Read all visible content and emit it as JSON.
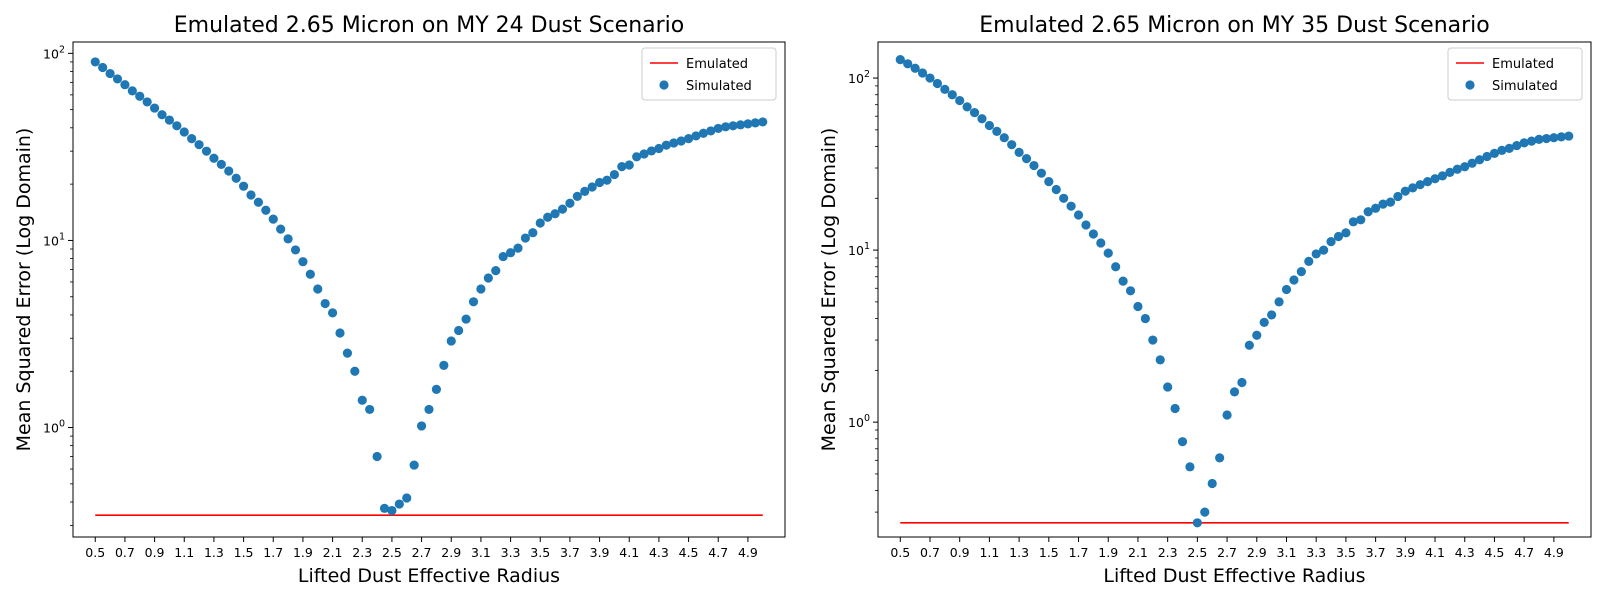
{
  "chart_data": [
    {
      "type": "scatter",
      "title": "Emulated 2.65 Micron on MY 24 Dust Scenario",
      "xlabel": "Lifted Dust Effective Radius",
      "ylabel": "Mean Squared Error (Log Domain)",
      "yscale": "log",
      "xlim": [
        0.35,
        5.15
      ],
      "ylim": [
        0.26,
        115
      ],
      "x_ticks": [
        "0.5",
        "0.7",
        "0.9",
        "1.1",
        "1.3",
        "1.5",
        "1.7",
        "1.9",
        "2.1",
        "2.3",
        "2.5",
        "2.7",
        "2.9",
        "3.1",
        "3.3",
        "3.5",
        "3.7",
        "3.9",
        "4.1",
        "4.3",
        "4.5",
        "4.7",
        "4.9"
      ],
      "y_ticks": [
        {
          "value": 1,
          "base": "10",
          "exp": "0"
        },
        {
          "value": 10,
          "base": "10",
          "exp": "1"
        },
        {
          "value": 100,
          "base": "10",
          "exp": "2"
        }
      ],
      "legend": {
        "position": "top-right",
        "entries": [
          "Emulated",
          "Simulated"
        ]
      },
      "colors": {
        "emulated": "#ff0000",
        "simulated": "#1f77b4"
      },
      "series": [
        {
          "name": "Emulated",
          "kind": "line",
          "x": [
            0.5,
            5.0
          ],
          "y": [
            0.34,
            0.34
          ]
        },
        {
          "name": "Simulated",
          "kind": "scatter",
          "x": [
            0.5,
            0.55,
            0.6,
            0.65,
            0.7,
            0.75,
            0.8,
            0.85,
            0.9,
            0.95,
            1.0,
            1.05,
            1.1,
            1.15,
            1.2,
            1.25,
            1.3,
            1.35,
            1.4,
            1.45,
            1.5,
            1.55,
            1.6,
            1.65,
            1.7,
            1.75,
            1.8,
            1.85,
            1.9,
            1.95,
            2.0,
            2.05,
            2.1,
            2.15,
            2.2,
            2.25,
            2.3,
            2.35,
            2.4,
            2.45,
            2.5,
            2.55,
            2.6,
            2.65,
            2.7,
            2.75,
            2.8,
            2.85,
            2.9,
            2.95,
            3.0,
            3.05,
            3.1,
            3.15,
            3.2,
            3.25,
            3.3,
            3.35,
            3.4,
            3.45,
            3.5,
            3.55,
            3.6,
            3.65,
            3.7,
            3.75,
            3.8,
            3.85,
            3.9,
            3.95,
            4.0,
            4.05,
            4.1,
            4.15,
            4.2,
            4.25,
            4.3,
            4.35,
            4.4,
            4.45,
            4.5,
            4.55,
            4.6,
            4.65,
            4.7,
            4.75,
            4.8,
            4.85,
            4.9,
            4.95,
            5.0
          ],
          "y": [
            90,
            84,
            78,
            73,
            68,
            63,
            59,
            55,
            51,
            47,
            44,
            41,
            38,
            35,
            32.5,
            30,
            27.5,
            25.5,
            23.5,
            21.5,
            19.5,
            17.5,
            16,
            14.5,
            13,
            11.5,
            10.2,
            8.9,
            7.7,
            6.6,
            5.5,
            4.6,
            4.1,
            3.2,
            2.5,
            2.0,
            1.4,
            1.25,
            0.7,
            0.37,
            0.36,
            0.39,
            0.42,
            0.63,
            1.02,
            1.25,
            1.6,
            2.15,
            2.9,
            3.3,
            3.8,
            4.7,
            5.5,
            6.3,
            6.9,
            8.2,
            8.6,
            9.1,
            10.3,
            11.0,
            12.4,
            13.3,
            13.9,
            14.7,
            15.8,
            17.2,
            18.3,
            19.3,
            20.4,
            21.0,
            22.5,
            24.8,
            25.3,
            28.0,
            29.0,
            30.1,
            31.0,
            32.3,
            33.2,
            34.0,
            35.0,
            36.2,
            37.4,
            38.5,
            39.7,
            40.5,
            41.0,
            41.5,
            42.0,
            42.5,
            43.0
          ]
        }
      ]
    },
    {
      "type": "scatter",
      "title": "Emulated 2.65 Micron on MY 35 Dust Scenario",
      "xlabel": "Lifted Dust Effective Radius",
      "ylabel": "Mean Squared Error (Log Domain)",
      "yscale": "log",
      "xlim": [
        0.35,
        5.15
      ],
      "ylim": [
        0.215,
        162
      ],
      "x_ticks": [
        "0.5",
        "0.7",
        "0.9",
        "1.1",
        "1.3",
        "1.5",
        "1.7",
        "1.9",
        "2.1",
        "2.3",
        "2.5",
        "2.7",
        "2.9",
        "3.1",
        "3.3",
        "3.5",
        "3.7",
        "3.9",
        "4.1",
        "4.3",
        "4.5",
        "4.7",
        "4.9"
      ],
      "y_ticks": [
        {
          "value": 1,
          "base": "10",
          "exp": "0"
        },
        {
          "value": 10,
          "base": "10",
          "exp": "1"
        },
        {
          "value": 100,
          "base": "10",
          "exp": "2"
        }
      ],
      "legend": {
        "position": "top-right",
        "entries": [
          "Emulated",
          "Simulated"
        ]
      },
      "colors": {
        "emulated": "#ff0000",
        "simulated": "#1f77b4"
      },
      "series": [
        {
          "name": "Emulated",
          "kind": "line",
          "x": [
            0.5,
            5.0
          ],
          "y": [
            0.26,
            0.26
          ]
        },
        {
          "name": "Simulated",
          "kind": "scatter",
          "x": [
            0.5,
            0.55,
            0.6,
            0.65,
            0.7,
            0.75,
            0.8,
            0.85,
            0.9,
            0.95,
            1.0,
            1.05,
            1.1,
            1.15,
            1.2,
            1.25,
            1.3,
            1.35,
            1.4,
            1.45,
            1.5,
            1.55,
            1.6,
            1.65,
            1.7,
            1.75,
            1.8,
            1.85,
            1.9,
            1.95,
            2.0,
            2.05,
            2.1,
            2.15,
            2.2,
            2.25,
            2.3,
            2.35,
            2.4,
            2.45,
            2.5,
            2.55,
            2.6,
            2.65,
            2.7,
            2.75,
            2.8,
            2.85,
            2.9,
            2.95,
            3.0,
            3.05,
            3.1,
            3.15,
            3.2,
            3.25,
            3.3,
            3.35,
            3.4,
            3.45,
            3.5,
            3.55,
            3.6,
            3.65,
            3.7,
            3.75,
            3.8,
            3.85,
            3.9,
            3.95,
            4.0,
            4.05,
            4.1,
            4.15,
            4.2,
            4.25,
            4.3,
            4.35,
            4.4,
            4.45,
            4.5,
            4.55,
            4.6,
            4.65,
            4.7,
            4.75,
            4.8,
            4.85,
            4.9,
            4.95,
            5.0
          ],
          "y": [
            128,
            121,
            114,
            107,
            100,
            93,
            86,
            80,
            74,
            68,
            63,
            58,
            53,
            49,
            45,
            41,
            37,
            34,
            31,
            28,
            25,
            22.5,
            20,
            18,
            16,
            14,
            12.4,
            11,
            9.6,
            8,
            6.6,
            5.8,
            4.7,
            4,
            3,
            2.3,
            1.6,
            1.2,
            0.77,
            0.55,
            0.26,
            0.3,
            0.44,
            0.62,
            1.1,
            1.5,
            1.7,
            2.8,
            3.2,
            3.8,
            4.2,
            5,
            5.9,
            6.7,
            7.5,
            8.6,
            9.5,
            10,
            11.2,
            12,
            12.6,
            14.6,
            15,
            16.7,
            17.5,
            18.5,
            19,
            20.5,
            22,
            23,
            24,
            25,
            26,
            27,
            28.3,
            29.5,
            30.5,
            32,
            33.5,
            35,
            36.5,
            38,
            39,
            40.5,
            42,
            43,
            44,
            44.5,
            45,
            45.5,
            46
          ]
        }
      ]
    }
  ]
}
